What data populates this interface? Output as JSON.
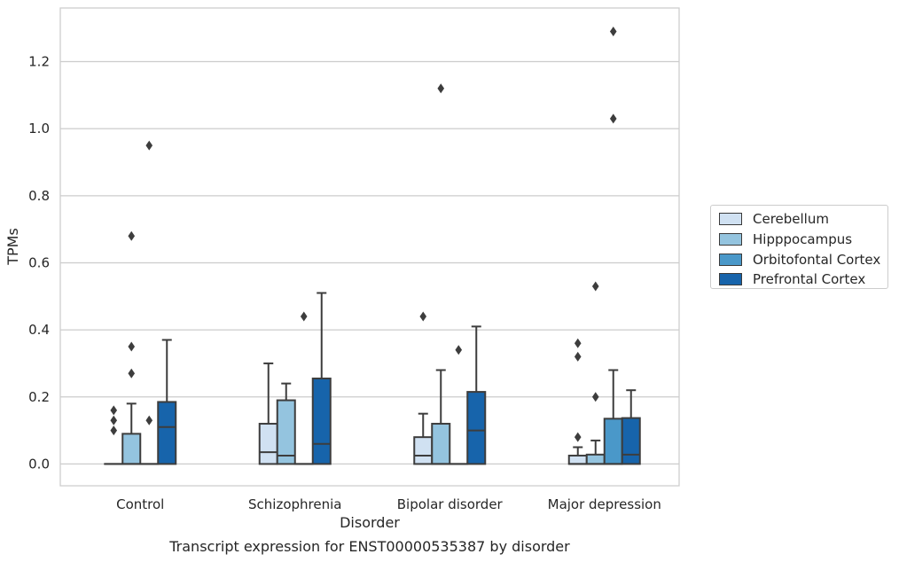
{
  "chart_data": {
    "type": "box",
    "title": "Transcript expression for ENST00000535387 by disorder",
    "xlabel": "Disorder",
    "ylabel": "TPMs",
    "ylim": [
      -0.065,
      1.36
    ],
    "yticks": [
      "0.0",
      "0.2",
      "0.4",
      "0.6",
      "0.8",
      "1.0",
      "1.2"
    ],
    "categories": [
      "Control",
      "Schizophrenia",
      "Bipolar disorder",
      "Major depression"
    ],
    "grid": true,
    "legend_position": "right",
    "series": [
      {
        "name": "Cerebellum",
        "color": "#d0e1f2",
        "boxes": [
          {
            "min": 0,
            "q1": 0,
            "median": 0,
            "q3": 0,
            "max": 0,
            "outliers": [
              0.1,
              0.13,
              0.16
            ]
          },
          {
            "min": 0,
            "q1": 0,
            "median": 0.035,
            "q3": 0.12,
            "max": 0.3,
            "outliers": []
          },
          {
            "min": 0,
            "q1": 0,
            "median": 0.025,
            "q3": 0.08,
            "max": 0.15,
            "outliers": [
              0.44
            ]
          },
          {
            "min": 0,
            "q1": 0,
            "median": 0,
            "q3": 0.025,
            "max": 0.05,
            "outliers": [
              0.08,
              0.32,
              0.36
            ]
          }
        ]
      },
      {
        "name": "Hipppocampus",
        "color": "#94c4df",
        "boxes": [
          {
            "min": 0,
            "q1": 0,
            "median": 0,
            "q3": 0.09,
            "max": 0.18,
            "outliers": [
              0.27,
              0.35,
              0.68
            ]
          },
          {
            "min": 0,
            "q1": 0,
            "median": 0.025,
            "q3": 0.19,
            "max": 0.24,
            "outliers": []
          },
          {
            "min": 0,
            "q1": 0,
            "median": 0,
            "q3": 0.12,
            "max": 0.28,
            "outliers": [
              1.12
            ]
          },
          {
            "min": 0,
            "q1": 0,
            "median": 0,
            "q3": 0.028,
            "max": 0.07,
            "outliers": [
              0.2,
              0.53
            ]
          }
        ]
      },
      {
        "name": "Orbitofontal Cortex",
        "color": "#4a98c9",
        "boxes": [
          {
            "min": 0,
            "q1": 0,
            "median": 0,
            "q3": 0,
            "max": 0,
            "outliers": [
              0.13,
              0.95
            ]
          },
          {
            "min": 0,
            "q1": 0,
            "median": 0,
            "q3": 0,
            "max": 0,
            "outliers": [
              0.44
            ]
          },
          {
            "min": 0,
            "q1": 0,
            "median": 0,
            "q3": 0,
            "max": 0,
            "outliers": [
              0.34
            ]
          },
          {
            "min": 0,
            "q1": 0,
            "median": 0,
            "q3": 0.135,
            "max": 0.28,
            "outliers": [
              1.03,
              1.29
            ]
          }
        ]
      },
      {
        "name": "Prefrontal Cortex",
        "color": "#1764ab",
        "boxes": [
          {
            "min": 0,
            "q1": 0,
            "median": 0.11,
            "q3": 0.185,
            "max": 0.37,
            "outliers": []
          },
          {
            "min": 0,
            "q1": 0,
            "median": 0.06,
            "q3": 0.255,
            "max": 0.51,
            "outliers": []
          },
          {
            "min": 0,
            "q1": 0,
            "median": 0.1,
            "q3": 0.215,
            "max": 0.41,
            "outliers": []
          },
          {
            "min": 0,
            "q1": 0,
            "median": 0.028,
            "q3": 0.137,
            "max": 0.22,
            "outliers": []
          }
        ]
      }
    ]
  }
}
